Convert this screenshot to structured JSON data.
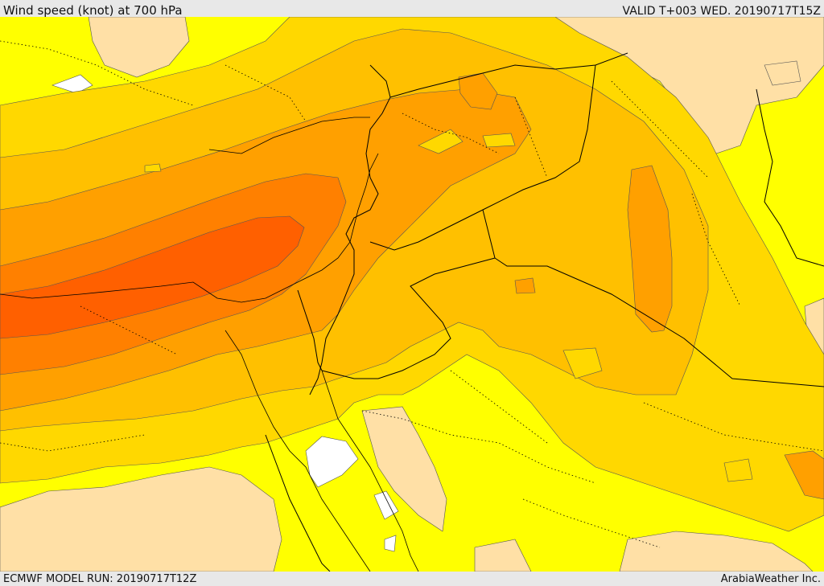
{
  "header": {
    "title": "Wind speed (knot) at 700 hPa",
    "valid": "VALID T+003 WED. 20190717T15Z"
  },
  "footer": {
    "model_run": "ECMWF MODEL RUN: 20190717T12Z",
    "credit": "ArabiaWeather Inc."
  },
  "colors": {
    "calm": "#ffffff",
    "light": "#ffe0a6",
    "base": "#ffff00",
    "level1": "#ffd800",
    "level2": "#ffc000",
    "level3": "#ffa000",
    "level4": "#ff8000",
    "level5": "#ff6000",
    "contour": "#555555",
    "border": "#000000"
  }
}
